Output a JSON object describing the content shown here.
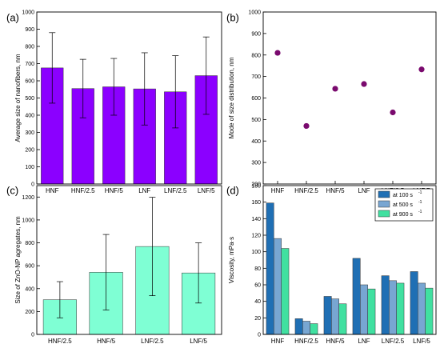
{
  "chart_data": [
    {
      "panel": "(a)",
      "type": "bar",
      "ylabel": "Average size of nanofibers, nm",
      "categories": [
        "HNF",
        "HNF/2.5",
        "HNF/5",
        "LNF",
        "LNF/2.5",
        "LNF/5"
      ],
      "values": [
        675,
        555,
        565,
        553,
        536,
        630
      ],
      "errors": [
        205,
        170,
        165,
        210,
        210,
        225
      ],
      "ylim": [
        0,
        1000
      ],
      "yticks": [
        0,
        100,
        200,
        300,
        400,
        500,
        600,
        700,
        800,
        900,
        1000
      ],
      "color": "#8b00ff"
    },
    {
      "panel": "(b)",
      "type": "scatter",
      "ylabel": "Mode of size distribution, nm",
      "categories": [
        "HNF",
        "HNF/2.5",
        "HNF/5",
        "LNF",
        "LNF/2.5",
        "LNF/5"
      ],
      "values": [
        810,
        470,
        643,
        665,
        533,
        733
      ],
      "ylim": [
        200,
        1000
      ],
      "yticks": [
        200,
        300,
        400,
        500,
        600,
        700,
        800,
        900,
        1000
      ],
      "color": "#7a0a6e"
    },
    {
      "panel": "(c)",
      "type": "bar",
      "ylabel": "Size of ZnO-NP agregates, nm",
      "categories": [
        "HNF/2.5",
        "HNF/5",
        "LNF/2.5",
        "LNF/5"
      ],
      "values": [
        303,
        543,
        768,
        537
      ],
      "errors": [
        158,
        330,
        430,
        263
      ],
      "ylim": [
        0,
        1300
      ],
      "yticks": [
        0,
        200,
        400,
        600,
        800,
        1000,
        1200
      ],
      "color": "#7fffd4"
    },
    {
      "panel": "(d)",
      "type": "bar",
      "ylabel": "Viscosity, mPa·s",
      "categories": [
        "HNF",
        "HNF/2.5",
        "HNF/5",
        "LNF",
        "LNF/2.5",
        "LNF/5"
      ],
      "ylim": [
        0,
        180
      ],
      "yticks": [
        0,
        20,
        40,
        60,
        80,
        100,
        120,
        140,
        160,
        180
      ],
      "legend_position": "top-right",
      "series": [
        {
          "name": "at 100 s",
          "sup": "-1",
          "values": [
            159,
            19,
            46,
            92,
            71,
            76
          ],
          "color": "#1f6fb4"
        },
        {
          "name": "at 500 s",
          "sup": "-1",
          "values": [
            116,
            16,
            43,
            60,
            65,
            62
          ],
          "color": "#78a6d2"
        },
        {
          "name": "at 900 s",
          "sup": "-1",
          "values": [
            104,
            13,
            37,
            55,
            62,
            56
          ],
          "color": "#40e0a0"
        }
      ]
    }
  ]
}
